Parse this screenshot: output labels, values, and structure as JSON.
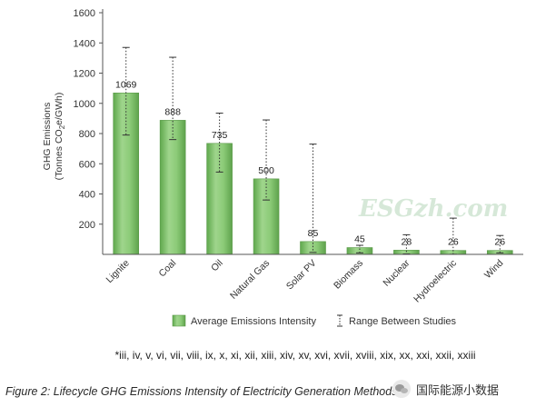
{
  "chart_data": {
    "type": "bar",
    "ylabel_line1": "GHG Emissions",
    "ylabel_line2": "(Tonnes CO",
    "ylabel_sub": "2",
    "ylabel_line2_rest": "e/GWh)",
    "ylim": [
      0,
      1600
    ],
    "yticks": [
      200,
      400,
      600,
      800,
      1000,
      1200,
      1400,
      1600
    ],
    "grid": false,
    "categories": [
      "Lignite",
      "Coal",
      "Oil",
      "Natural Gas",
      "Solar PV",
      "Biomass",
      "Nuclear",
      "Hydroelectric",
      "Wind"
    ],
    "series": [
      {
        "name": "Average Emissions Intensity",
        "values": [
          1069,
          888,
          735,
          500,
          85,
          45,
          28,
          26,
          26
        ]
      }
    ],
    "ranges": [
      [
        790,
        1370
      ],
      [
        760,
        1305
      ],
      [
        545,
        935
      ],
      [
        360,
        890
      ],
      [
        13,
        730
      ],
      [
        10,
        60
      ],
      [
        3,
        130
      ],
      [
        1,
        240
      ],
      [
        10,
        125
      ]
    ],
    "range_legend": "Range Between Studies",
    "bar_color": "#7dc06a",
    "legend_position": "bottom"
  },
  "footnote": "*iii, iv, v, vi, vii, viii, ix, x, xi, xii, xiii, xiv, xv, xvi, xvii, xviii, xix, xx, xxi, xxii, xxiii",
  "caption": "Figure 2: Lifecycle GHG Emissions Intensity of Electricity Generation Methods",
  "watermark": "ESGzh.com",
  "wechat_label": "国际能源小数据"
}
